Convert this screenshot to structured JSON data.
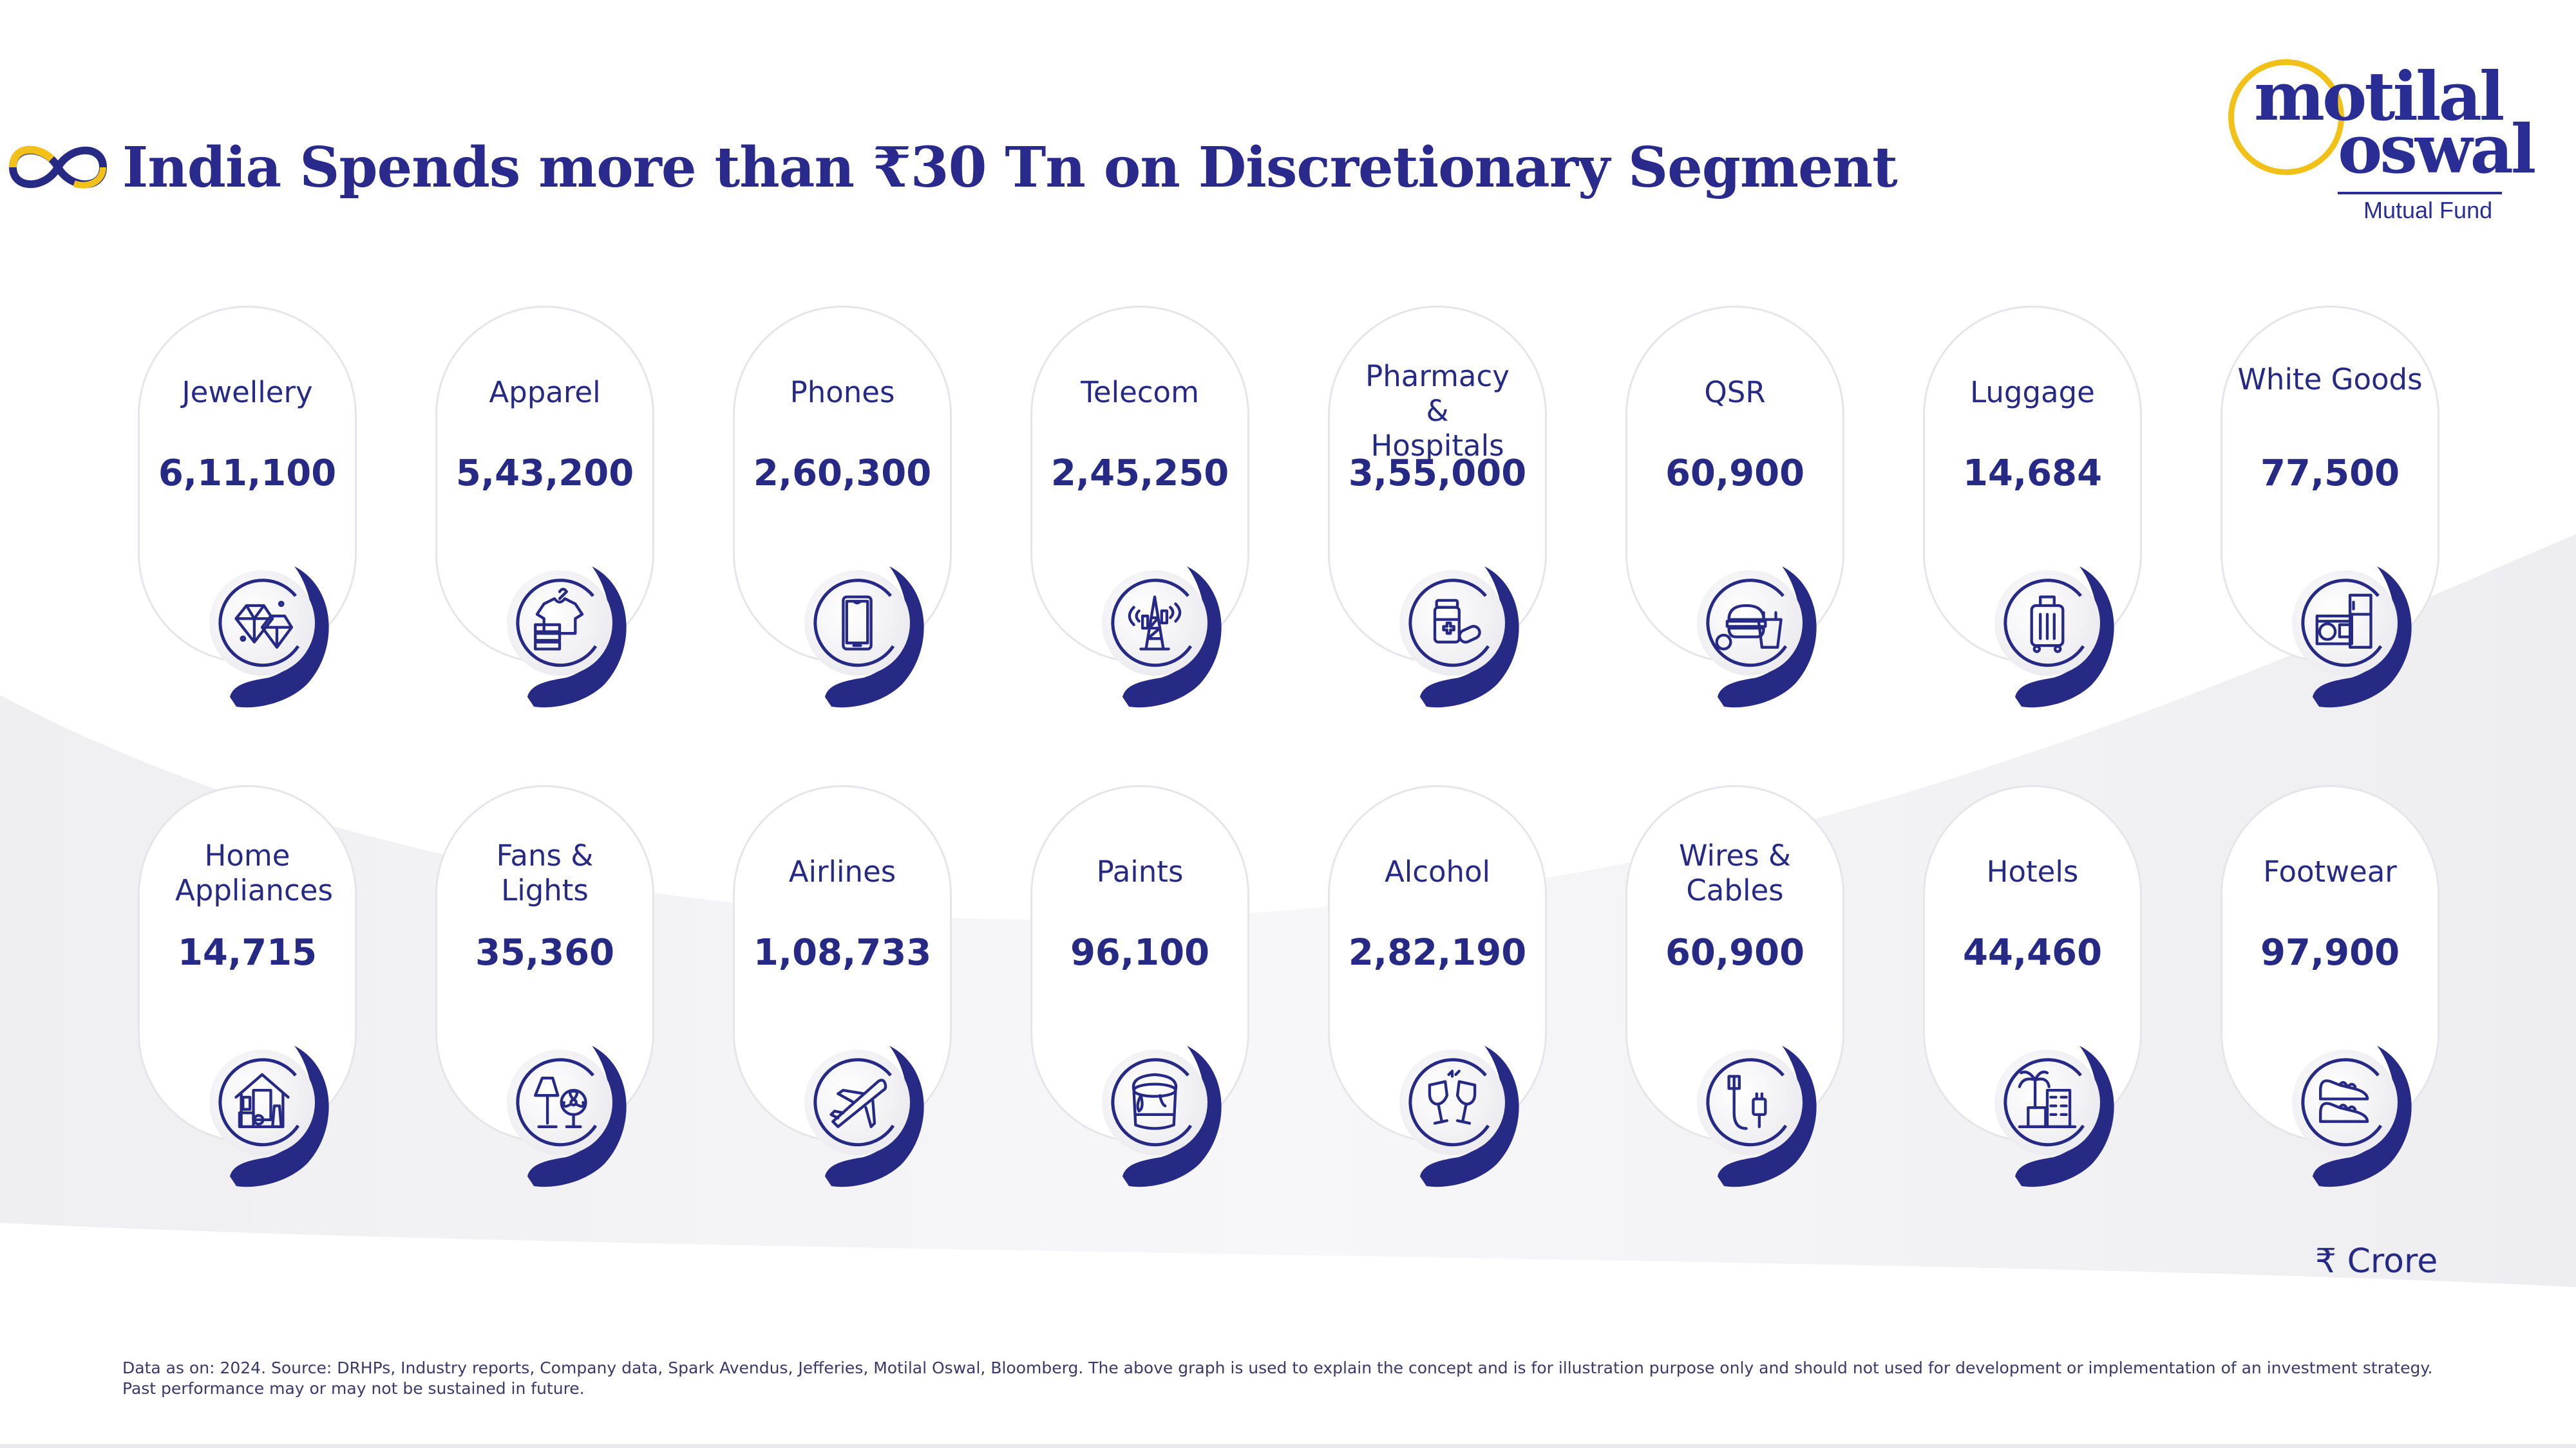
{
  "header": {
    "title": "India Spends more than ₹30 Tn on Discretionary Segment"
  },
  "logo": {
    "line1": "motilal",
    "line2": "oswal",
    "subtitle": "Mutual Fund"
  },
  "colors": {
    "brand_navy": "#262a85",
    "brand_gold": "#f2c118",
    "card_border": "#e6e6ea"
  },
  "segments": [
    {
      "label": "Jewellery",
      "value": "6,11,100",
      "icon": "diamond-icon"
    },
    {
      "label": "Apparel",
      "value": "5,43,200",
      "icon": "clothes-icon"
    },
    {
      "label": "Phones",
      "value": "2,60,300",
      "icon": "smartphone-icon"
    },
    {
      "label": "Telecom",
      "value": "2,45,250",
      "icon": "cell-tower-icon"
    },
    {
      "label": "Pharmacy & Hospitals",
      "value": "3,55,000",
      "icon": "medicine-icon"
    },
    {
      "label": "QSR",
      "value": "60,900",
      "icon": "fast-food-icon"
    },
    {
      "label": "Luggage",
      "value": "14,684",
      "icon": "suitcase-icon"
    },
    {
      "label": "White Goods",
      "value": "77,500",
      "icon": "appliances-icon"
    },
    {
      "label": "Home Appliances",
      "value": "14,715",
      "icon": "home-appliances-icon"
    },
    {
      "label": "Fans & Lights",
      "value": "35,360",
      "icon": "fan-lamp-icon"
    },
    {
      "label": "Airlines",
      "value": "1,08,733",
      "icon": "airplane-icon"
    },
    {
      "label": "Paints",
      "value": "96,100",
      "icon": "paint-bucket-icon"
    },
    {
      "label": "Alcohol",
      "value": "2,82,190",
      "icon": "cheers-glasses-icon"
    },
    {
      "label": "Wires & Cables",
      "value": "60,900",
      "icon": "plug-cable-icon"
    },
    {
      "label": "Hotels",
      "value": "44,460",
      "icon": "hotel-icon"
    },
    {
      "label": "Footwear",
      "value": "97,900",
      "icon": "sneakers-icon"
    }
  ],
  "unit_label": "₹ Crore",
  "footer": {
    "disclaimer_line1": "Data as on: 2024. Source: DRHPs, Industry reports, Company data, Spark Avendus, Jefferies, Motilal Oswal, Bloomberg. The above graph is used to explain the concept and is for illustration purpose only and should not used for development or implementation of an investment strategy.",
    "disclaimer_line2": "Past performance may or may not be sustained in future."
  }
}
